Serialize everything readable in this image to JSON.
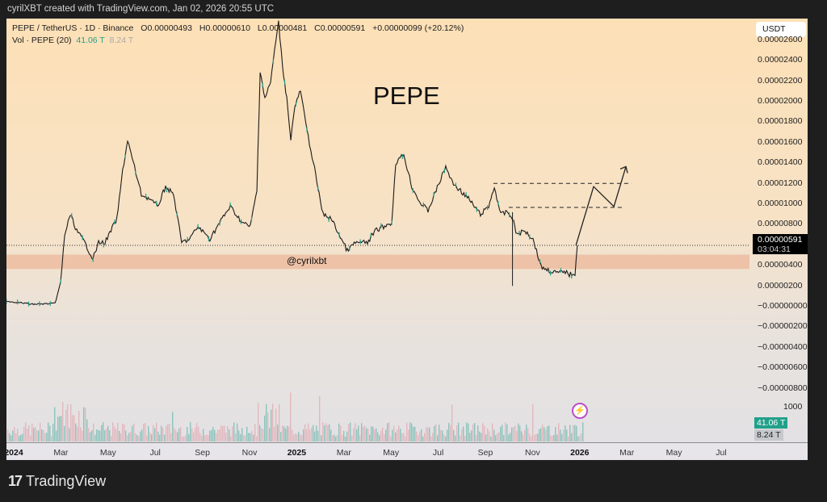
{
  "header": {
    "caption": "cyrilXBT created with TradingView.com, Jan 02, 2026 20:55 UTC"
  },
  "legend": {
    "symbol": "PEPE / TetherUS · 1D · Binance",
    "open": "O0.00000493",
    "high": "H0.00000610",
    "low": "L0.00000481",
    "close": "C0.00000591",
    "change": "+0.00000099 (+20.12%)",
    "volume_label": "Vol · PEPE (20)",
    "volume_value": "41.06 T",
    "volume_ma": "8.24 T"
  },
  "currency_button": "USDT",
  "annotations": {
    "title": "PEPE",
    "handle": "@cyrilxbt"
  },
  "price_marker": {
    "price": "0.00000591",
    "countdown": "03:04:31"
  },
  "volume_markers": {
    "volume": "41.06 T",
    "ma": "8.24 T",
    "axis_tick": "1000"
  },
  "footer": {
    "brand": "TradingView"
  },
  "colors": {
    "up": "#22a08a",
    "down": "#e0868f",
    "line": "#1b1b1b",
    "zone": "#ebb79a",
    "purple": "#b94fc8"
  },
  "chart_data": {
    "type": "line",
    "title": "PEPE",
    "x_unit": "months since Jan 2024",
    "y_unit": "USDT",
    "ylim": [
      -9.5e-06,
      2.68e-05
    ],
    "y_ticks": [
      "0.00002600",
      "0.00002400",
      "0.00002200",
      "0.00002000",
      "0.00001800",
      "0.00001600",
      "0.00001400",
      "0.00001200",
      "0.00001000",
      "0.00000800",
      "0.00000400",
      "0.00000200",
      "−0.00000000",
      "−0.00000200",
      "−0.00000400",
      "−0.00000600",
      "−0.00000800"
    ],
    "y_tick_values": [
      2.6e-05,
      2.4e-05,
      2.2e-05,
      2e-05,
      1.8e-05,
      1.6e-05,
      1.4e-05,
      1.2e-05,
      1e-05,
      8e-06,
      4e-06,
      2e-06,
      0,
      -2e-06,
      -4e-06,
      -6e-06,
      -8e-06
    ],
    "x_ticks": [
      {
        "label": "2024",
        "m": 0,
        "bold": true
      },
      {
        "label": "Mar",
        "m": 2
      },
      {
        "label": "May",
        "m": 4
      },
      {
        "label": "Jul",
        "m": 6
      },
      {
        "label": "Sep",
        "m": 8
      },
      {
        "label": "Nov",
        "m": 10
      },
      {
        "label": "2025",
        "m": 12,
        "bold": true
      },
      {
        "label": "Mar",
        "m": 14
      },
      {
        "label": "May",
        "m": 16
      },
      {
        "label": "Jul",
        "m": 18
      },
      {
        "label": "Sep",
        "m": 20
      },
      {
        "label": "Nov",
        "m": 22
      },
      {
        "label": "2026",
        "m": 24,
        "bold": true
      },
      {
        "label": "Mar",
        "m": 26
      },
      {
        "label": "May",
        "m": 28
      },
      {
        "label": "Jul",
        "m": 30
      }
    ],
    "price": [
      [
        -0.31,
        4.7e-07
      ],
      [
        0.79,
        1.6e-07
      ],
      [
        1.75,
        2.3e-07
      ],
      [
        1.99,
        2.27e-06
      ],
      [
        2.16,
        6.95e-06
      ],
      [
        2.4,
        8.91e-06
      ],
      [
        2.67,
        7.34e-06
      ],
      [
        3.01,
        6.17e-06
      ],
      [
        3.36,
        4.61e-06
      ],
      [
        3.6,
        6.17e-06
      ],
      [
        3.87,
        6.17e-06
      ],
      [
        4.38,
        8.52e-06
      ],
      [
        4.62,
        1.32e-05
      ],
      [
        4.83,
        1.617e-05
      ],
      [
        5.07,
        1.398e-05
      ],
      [
        5.41,
        1.086e-05
      ],
      [
        5.75,
        1.047e-05
      ],
      [
        6.1,
        9.69e-06
      ],
      [
        6.44,
        1.164e-05
      ],
      [
        6.78,
        1.086e-05
      ],
      [
        7.12,
        6.17e-06
      ],
      [
        7.47,
        6.56e-06
      ],
      [
        7.81,
        7.73e-06
      ],
      [
        8.32,
        6.56e-06
      ],
      [
        8.84,
        8.52e-06
      ],
      [
        9.18,
        9.69e-06
      ],
      [
        9.69,
        8.13e-06
      ],
      [
        10.03,
        7.73e-06
      ],
      [
        10.31,
        1.125e-05
      ],
      [
        10.45,
        2.297e-05
      ],
      [
        10.65,
        2.023e-05
      ],
      [
        10.89,
        2.18e-05
      ],
      [
        11.06,
        2.492e-05
      ],
      [
        11.23,
        2.766e-05
      ],
      [
        11.4,
        2.336e-05
      ],
      [
        11.58,
        2.023e-05
      ],
      [
        11.75,
        1.633e-05
      ],
      [
        11.92,
        1.945e-05
      ],
      [
        12.16,
        2.102e-05
      ],
      [
        12.43,
        1.711e-05
      ],
      [
        12.71,
        1.398e-05
      ],
      [
        12.95,
        1.086e-05
      ],
      [
        13.12,
        8.91e-06
      ],
      [
        13.46,
        8.52e-06
      ],
      [
        13.8,
        6.95e-06
      ],
      [
        14.14,
        5.39e-06
      ],
      [
        14.49,
        6.17e-06
      ],
      [
        15.0,
        6.17e-06
      ],
      [
        15.34,
        7.34e-06
      ],
      [
        15.68,
        7.73e-06
      ],
      [
        16.03,
        8.13e-06
      ],
      [
        16.2,
        1.398e-05
      ],
      [
        16.54,
        1.477e-05
      ],
      [
        16.88,
        1.164e-05
      ],
      [
        17.23,
        1.008e-05
      ],
      [
        17.57,
        9.3e-06
      ],
      [
        17.91,
        1.125e-05
      ],
      [
        18.32,
        1.359e-05
      ],
      [
        18.6,
        1.203e-05
      ],
      [
        18.94,
        1.125e-05
      ],
      [
        19.28,
        1.047e-05
      ],
      [
        19.79,
        8.91e-06
      ],
      [
        20.14,
        9.69e-06
      ],
      [
        20.38,
        1.164e-05
      ],
      [
        20.65,
        8.91e-06
      ],
      [
        20.92,
        9.14e-06
      ],
      [
        21.06,
        8.91e-06
      ],
      [
        21.2,
        8.13e-06
      ],
      [
        21.34,
        6.95e-06
      ],
      [
        21.68,
        7.34e-06
      ],
      [
        22.02,
        6.56e-06
      ],
      [
        22.36,
        3.83e-06
      ],
      [
        22.71,
        3.44e-06
      ],
      [
        23.05,
        3.2e-06
      ],
      [
        23.39,
        3.36e-06
      ],
      [
        23.56,
        3.05e-06
      ],
      [
        23.8,
        3.2e-06
      ],
      [
        23.9,
        5.91e-06
      ]
    ],
    "wick": {
      "m": 21.15,
      "high": 9.14e-06,
      "low": 1.95e-06
    },
    "support_zone": [
      3.6e-06,
      5e-06
    ],
    "current_price": 5.91e-06,
    "resistance_levels": [
      {
        "price": 1.195e-05,
        "from": 20.34,
        "to": 26.2
      },
      {
        "price": 9.61e-06,
        "from": 20.99,
        "to": 25.79
      }
    ],
    "projection": [
      [
        23.84,
        5.91e-06
      ],
      [
        24.59,
        1.164e-05
      ],
      [
        25.45,
        9.69e-06
      ],
      [
        25.96,
        1.359e-05
      ]
    ]
  }
}
